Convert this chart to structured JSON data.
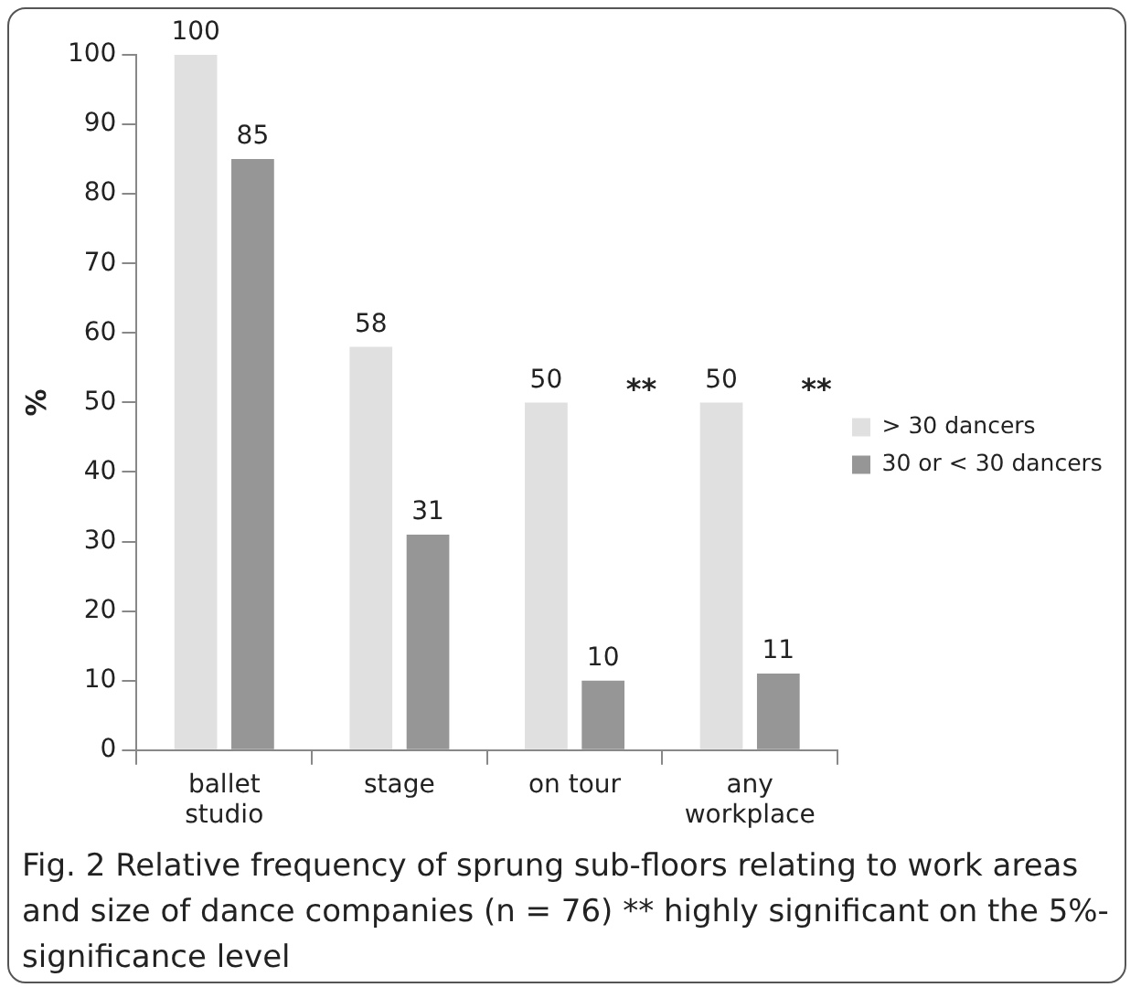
{
  "chart_data": {
    "type": "bar",
    "ylabel": "%",
    "categories": [
      "ballet studio",
      "stage",
      "on tour",
      "any workplace"
    ],
    "series": [
      {
        "name": "> 30 dancers",
        "color": "#e0e0e0",
        "values": [
          100,
          58,
          50,
          50
        ]
      },
      {
        "name": "30 or < 30 dancers",
        "color": "#969696",
        "values": [
          85,
          31,
          10,
          11
        ]
      }
    ],
    "ylim": [
      0,
      100
    ],
    "yticks": [
      0,
      10,
      20,
      30,
      40,
      50,
      60,
      70,
      80,
      90,
      100
    ],
    "grid": false,
    "legend": "right",
    "data_labels": true,
    "annotations": [
      {
        "text": "**",
        "x": "on tour",
        "y": 50
      },
      {
        "text": "**",
        "x": "any workplace",
        "y": 50
      },
      "Fig. 2 Relative frequency of sprung sub-floors relating to work areas and size of dance companies (n = 76) ** highly significant on the 5%- significance level"
    ]
  }
}
